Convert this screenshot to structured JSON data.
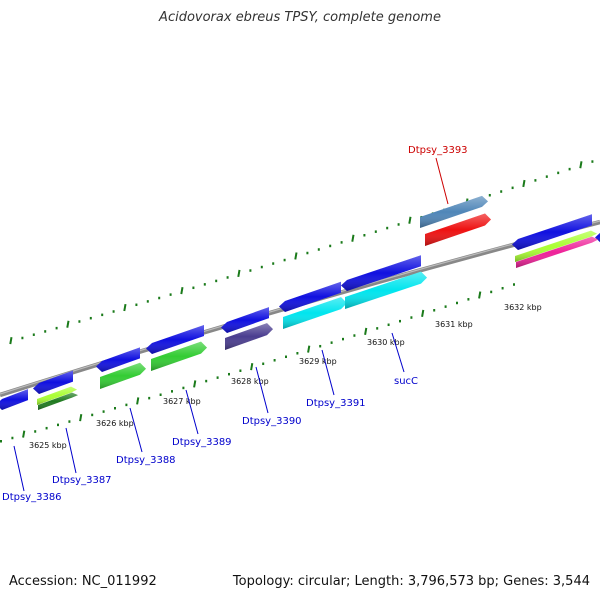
{
  "title": "Acidovorax ebreus TPSY, complete genome",
  "footer": {
    "accession": "Accession: NC_011992",
    "summary": "Topology: circular; Length: 3,796,573 bp; Genes: 3,544"
  },
  "scale": {
    "ticks": [
      {
        "label": "3625 kbp"
      },
      {
        "label": "3626 kbp"
      },
      {
        "label": "3627 kbp"
      },
      {
        "label": "3628 kbp"
      },
      {
        "label": "3629 kbp"
      },
      {
        "label": "3630 kbp"
      },
      {
        "label": "3631 kbp"
      },
      {
        "label": "3632 kbp"
      }
    ]
  },
  "genes": [
    {
      "label": "Dtpsy_3386",
      "color": "#0000cc"
    },
    {
      "label": "Dtpsy_3387",
      "color": "#0000cc"
    },
    {
      "label": "Dtpsy_3388",
      "color": "#0000cc"
    },
    {
      "label": "Dtpsy_3389",
      "color": "#0000cc"
    },
    {
      "label": "Dtpsy_3390",
      "color": "#0000cc"
    },
    {
      "label": "Dtpsy_3391",
      "color": "#0000cc"
    },
    {
      "label": "sucC",
      "color": "#0000cc"
    },
    {
      "label": "Dtpsy_3393",
      "color": "#cc0000"
    }
  ],
  "colors": {
    "backbone": "#888888",
    "ticks": "#1a7a1a",
    "cds": "#1010e0",
    "cog_green": "#33cc33",
    "cog_cyan": "#00e5ee",
    "cog_purple": "#4a3d8f",
    "cog_red": "#ee1111",
    "cog_steel": "#4f86b8",
    "cog_lime": "#aaff33",
    "cog_magenta": "#ee2299",
    "cog_darkgreen": "#1f7a1f"
  }
}
